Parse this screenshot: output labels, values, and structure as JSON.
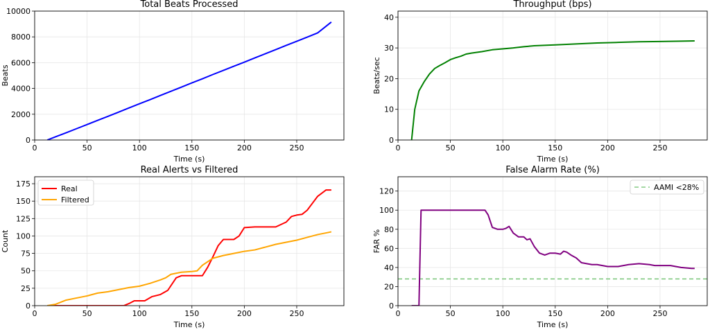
{
  "chart_data": [
    {
      "type": "line",
      "title": "Total Beats Processed",
      "xlabel": "Time (s)",
      "ylabel": "Beats",
      "xlim": [
        0,
        295
      ],
      "ylim": [
        0,
        10000
      ],
      "xticks": [
        0,
        50,
        100,
        150,
        200,
        250
      ],
      "yticks": [
        0,
        2000,
        4000,
        6000,
        8000,
        10000
      ],
      "grid": true,
      "series": [
        {
          "color": "#0000ff",
          "x": [
            12,
            20,
            30,
            40,
            50,
            60,
            70,
            80,
            90,
            100,
            110,
            120,
            130,
            140,
            150,
            160,
            170,
            180,
            190,
            200,
            210,
            220,
            230,
            240,
            250,
            260,
            270,
            283
          ],
          "y": [
            0,
            250,
            560,
            880,
            1200,
            1520,
            1840,
            2160,
            2490,
            2810,
            3130,
            3460,
            3780,
            4100,
            4430,
            4750,
            5080,
            5400,
            5720,
            6040,
            6370,
            6690,
            7010,
            7340,
            7660,
            7980,
            8310,
            9150
          ]
        }
      ]
    },
    {
      "type": "line",
      "title": "Throughput (bps)",
      "xlabel": "Time (s)",
      "ylabel": "Beats/sec",
      "xlim": [
        0,
        295
      ],
      "ylim": [
        0,
        42
      ],
      "xticks": [
        0,
        50,
        100,
        150,
        200,
        250
      ],
      "yticks": [
        0,
        10,
        20,
        30,
        40
      ],
      "grid": true,
      "series": [
        {
          "color": "#008000",
          "x": [
            13,
            16,
            20,
            25,
            30,
            35,
            40,
            45,
            50,
            55,
            60,
            65,
            70,
            80,
            90,
            100,
            110,
            120,
            130,
            150,
            170,
            190,
            210,
            230,
            250,
            270,
            283
          ],
          "y": [
            0,
            10,
            16,
            19,
            21.5,
            23.3,
            24.3,
            25.2,
            26.2,
            26.8,
            27.3,
            28,
            28.3,
            28.8,
            29.4,
            29.7,
            30,
            30.4,
            30.7,
            31,
            31.3,
            31.6,
            31.8,
            32,
            32.1,
            32.2,
            32.3
          ]
        }
      ]
    },
    {
      "type": "line",
      "title": "Real Alerts vs Filtered",
      "xlabel": "Time (s)",
      "ylabel": "Count",
      "xlim": [
        0,
        295
      ],
      "ylim": [
        0,
        185
      ],
      "xticks": [
        0,
        50,
        100,
        150,
        200,
        250
      ],
      "yticks": [
        0,
        25,
        50,
        75,
        100,
        125,
        150,
        175
      ],
      "grid": true,
      "legend": "top-left",
      "series": [
        {
          "name": "Real",
          "color": "#ff0000",
          "x": [
            12,
            85,
            90,
            95,
            105,
            112,
            120,
            127,
            135,
            140,
            150,
            160,
            165,
            170,
            175,
            180,
            190,
            195,
            200,
            210,
            220,
            230,
            240,
            245,
            250,
            255,
            260,
            265,
            270,
            278,
            283
          ],
          "y": [
            0,
            0,
            3,
            7,
            7,
            13,
            16,
            22,
            40,
            43,
            43,
            43,
            55,
            70,
            86,
            95,
            95,
            100,
            112,
            113,
            113,
            113,
            120,
            128,
            130,
            131,
            137,
            147,
            157,
            166,
            166
          ]
        },
        {
          "name": "Filtered",
          "color": "#ffa500",
          "x": [
            12,
            20,
            30,
            40,
            50,
            60,
            70,
            80,
            90,
            100,
            110,
            120,
            125,
            130,
            140,
            150,
            155,
            160,
            170,
            180,
            190,
            200,
            210,
            220,
            230,
            240,
            250,
            260,
            270,
            280,
            283
          ],
          "y": [
            0,
            2,
            8,
            11,
            14,
            18,
            20,
            23,
            26,
            28,
            32,
            37,
            40,
            45,
            48,
            49,
            50,
            58,
            68,
            72,
            75,
            78,
            80,
            84,
            88,
            91,
            94,
            98,
            102,
            105,
            106
          ]
        }
      ]
    },
    {
      "type": "line",
      "title": "False Alarm Rate (%)",
      "xlabel": "Time (s)",
      "ylabel": "FAR %",
      "xlim": [
        0,
        295
      ],
      "ylim": [
        0,
        135
      ],
      "xticks": [
        0,
        50,
        100,
        150,
        200,
        250
      ],
      "yticks": [
        0,
        20,
        40,
        60,
        80,
        100,
        120
      ],
      "grid": true,
      "legend": "top-right",
      "reference_line": {
        "label": "AAMI <28%",
        "y": 28,
        "color": "#6abf69"
      },
      "series": [
        {
          "color": "#800080",
          "x": [
            13,
            20,
            22,
            30,
            40,
            50,
            60,
            70,
            80,
            83,
            86,
            90,
            95,
            100,
            103,
            106,
            110,
            115,
            120,
            123,
            126,
            130,
            135,
            140,
            145,
            150,
            155,
            158,
            161,
            165,
            170,
            175,
            180,
            185,
            190,
            195,
            200,
            210,
            220,
            230,
            240,
            245,
            250,
            260,
            270,
            280,
            283
          ],
          "y": [
            0,
            0,
            100,
            100,
            100,
            100,
            100,
            100,
            100,
            100,
            95,
            82,
            80,
            80,
            81,
            83,
            76,
            72,
            72,
            69,
            70,
            62,
            55,
            53,
            55,
            55,
            54,
            57,
            56,
            53,
            50,
            45,
            44,
            43,
            43,
            42,
            41,
            41,
            43,
            44,
            43,
            42,
            42,
            42,
            40,
            39,
            39
          ]
        }
      ]
    }
  ]
}
